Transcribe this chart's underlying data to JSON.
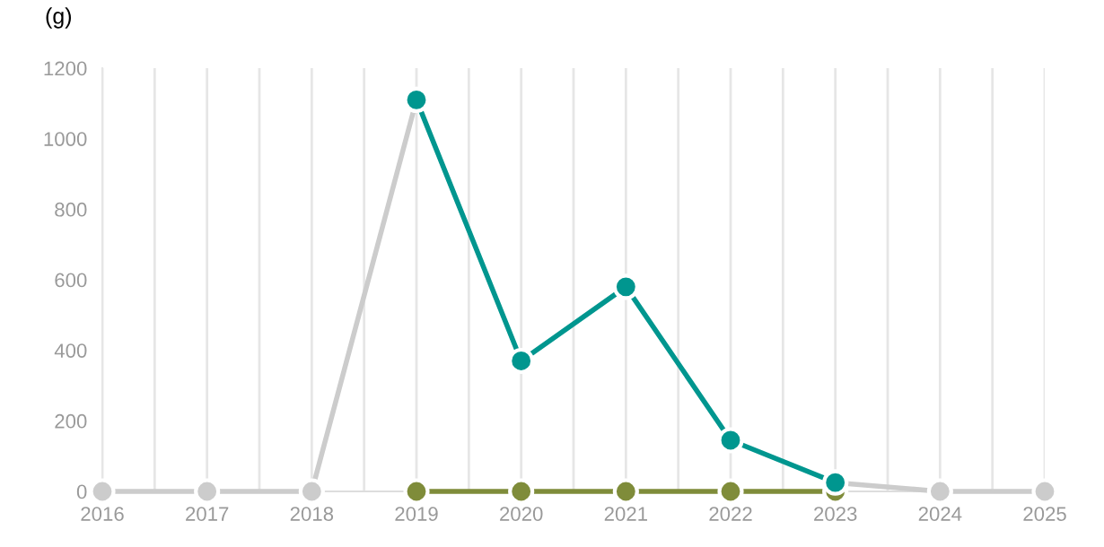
{
  "chart_data": {
    "type": "line",
    "ylabel": "(g)",
    "x": [
      2016,
      2017,
      2018,
      2019,
      2020,
      2021,
      2022,
      2023,
      2024,
      2025
    ],
    "series": [
      {
        "color": "#cccccc",
        "values": [
          0,
          0,
          0,
          1110,
          null,
          null,
          null,
          25,
          0,
          0
        ]
      },
      {
        "color": "#7f8c3a",
        "values": [
          null,
          null,
          null,
          0,
          0,
          0,
          0,
          0,
          null,
          null
        ]
      },
      {
        "color": "#00968f",
        "values": [
          null,
          null,
          null,
          1110,
          370,
          580,
          145,
          25,
          null,
          null
        ]
      }
    ],
    "xlim": [
      2016,
      2025
    ],
    "xticks": [
      2016,
      {
        "value": 2016.5,
        "label": null
      },
      2017,
      {
        "value": 2017.5,
        "label": null
      },
      2018,
      {
        "value": 2018.5,
        "label": null
      },
      2019,
      {
        "value": 2019.5,
        "label": null
      },
      2020,
      {
        "value": 2020.5,
        "label": null
      },
      2021,
      {
        "value": 2021.5,
        "label": null
      },
      2022,
      {
        "value": 2022.5,
        "label": null
      },
      2023,
      {
        "value": 2023.5,
        "label": null
      },
      2024,
      {
        "value": 2024.5,
        "label": null
      },
      2025
    ],
    "ylim": [
      0,
      1200
    ],
    "yticks": [
      0,
      200,
      400,
      600,
      800,
      1000,
      1200
    ],
    "grid": "x",
    "marker": "circle",
    "line_style": "solid"
  }
}
